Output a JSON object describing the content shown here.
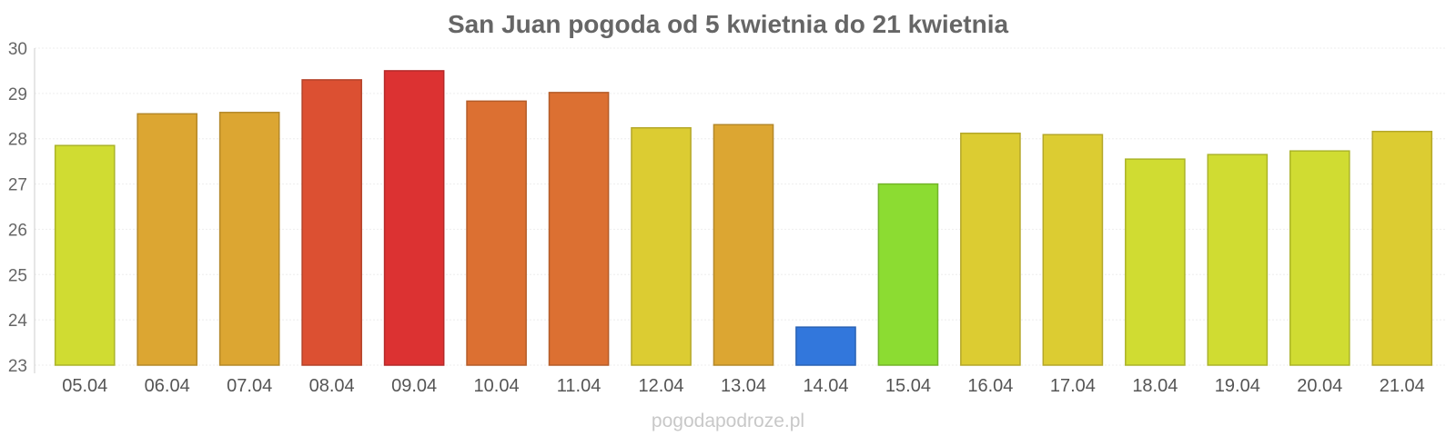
{
  "chart_data": {
    "type": "bar",
    "title": "San Juan pogoda od 5 kwietnia do 21 kwietnia",
    "xlabel": "",
    "ylabel": "",
    "ylim": [
      23,
      30
    ],
    "yticks": [
      "23",
      "24",
      "25",
      "26",
      "27",
      "28",
      "29",
      "30"
    ],
    "grid": true,
    "categories": [
      "05.04",
      "06.04",
      "07.04",
      "08.04",
      "09.04",
      "10.04",
      "11.04",
      "12.04",
      "13.04",
      "14.04",
      "15.04",
      "16.04",
      "17.04",
      "18.04",
      "19.04",
      "20.04",
      "21.04"
    ],
    "values": [
      27.85,
      28.55,
      28.58,
      29.3,
      29.5,
      28.83,
      29.02,
      28.24,
      28.31,
      23.84,
      27.0,
      28.12,
      28.09,
      27.55,
      27.65,
      27.73,
      28.16
    ],
    "colors": [
      "#d0dc32",
      "#dca632",
      "#dca632",
      "#dc5032",
      "#dc3232",
      "#dc7032",
      "#dc7032",
      "#dccc32",
      "#dca632",
      "#3277dc",
      "#8cdc32",
      "#dccc32",
      "#dccc32",
      "#d0dc32",
      "#d0dc32",
      "#d0dc32",
      "#dccc32"
    ]
  },
  "watermark": "pogodapodroze.pl"
}
